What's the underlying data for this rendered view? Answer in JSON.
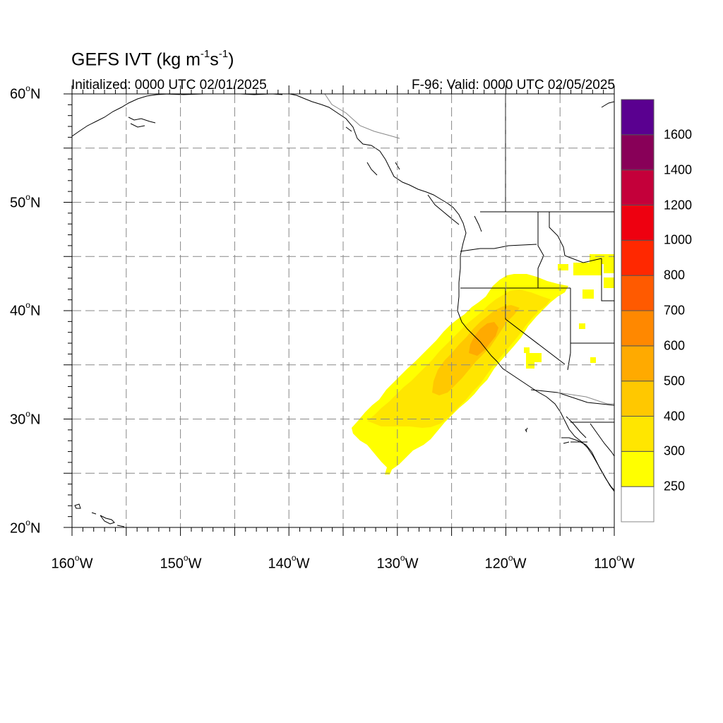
{
  "header": {
    "title_main": "GEFS IVT (kg m",
    "title_exp1": "-1",
    "title_mid": "s",
    "title_exp2": "-1",
    "title_end": ")",
    "initialized": "Initialized: 0000 UTC 02/01/2025",
    "valid": "F-96: Valid: 0000 UTC 02/05/2025"
  },
  "axes": {
    "lat_labels": [
      {
        "num": "60",
        "deg": "o",
        "hemi": "N"
      },
      {
        "num": "50",
        "deg": "o",
        "hemi": "N"
      },
      {
        "num": "40",
        "deg": "o",
        "hemi": "N"
      },
      {
        "num": "30",
        "deg": "o",
        "hemi": "N"
      },
      {
        "num": "20",
        "deg": "o",
        "hemi": "N"
      }
    ],
    "lon_labels": [
      {
        "num": "160",
        "deg": "o",
        "hemi": "W"
      },
      {
        "num": "150",
        "deg": "o",
        "hemi": "W"
      },
      {
        "num": "140",
        "deg": "o",
        "hemi": "W"
      },
      {
        "num": "130",
        "deg": "o",
        "hemi": "W"
      },
      {
        "num": "120",
        "deg": "o",
        "hemi": "W"
      },
      {
        "num": "110",
        "deg": "o",
        "hemi": "W"
      }
    ],
    "lat_range": [
      20,
      60
    ],
    "lon_range": [
      -160,
      -110
    ],
    "grid": "dashed every 5 degrees"
  },
  "colorbar": {
    "labels": [
      "1600",
      "1400",
      "1200",
      "1000",
      "800",
      "700",
      "600",
      "500",
      "400",
      "300",
      "250"
    ],
    "colors": [
      "#ffffff",
      "#ffff00",
      "#ffe600",
      "#ffc800",
      "#ffaa00",
      "#ff8800",
      "#ff5a00",
      "#ff2800",
      "#ee0010",
      "#c4003a",
      "#880058",
      "#5a0090"
    ]
  },
  "chart_data": {
    "type": "heatmap",
    "variable": "IVT",
    "levels": [
      250,
      300,
      400,
      500,
      600,
      700,
      800,
      1000,
      1200,
      1400,
      1600
    ],
    "atmospheric_river_max_range": [
      400,
      600
    ]
  }
}
